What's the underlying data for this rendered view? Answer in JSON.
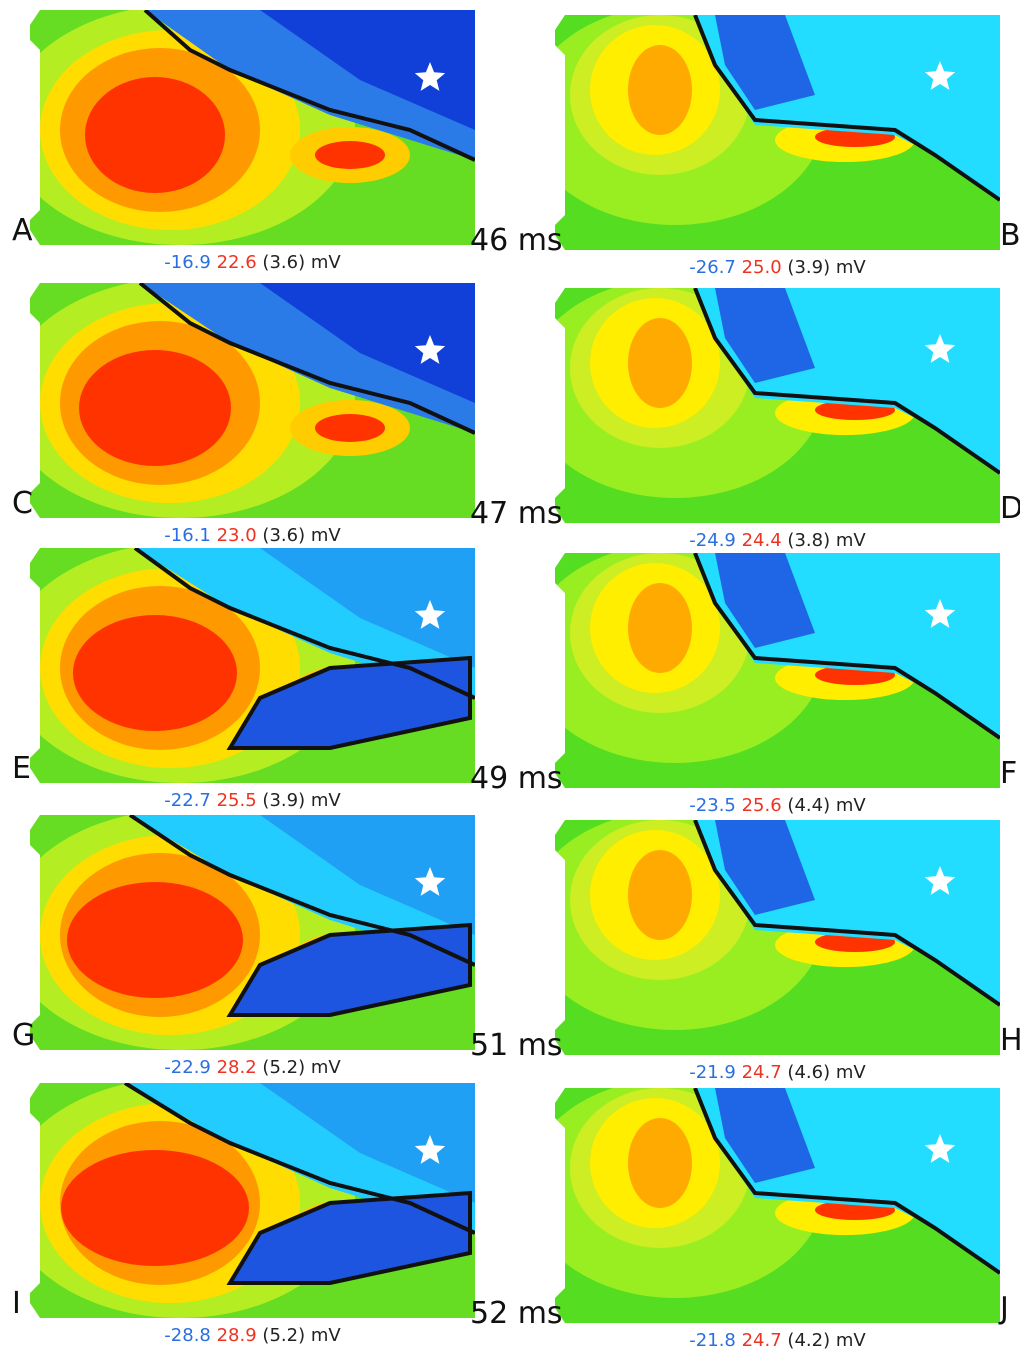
{
  "panels": [
    {
      "letter": "A",
      "min": "-16.9",
      "max": "22.6",
      "spread": "(3.6)",
      "unit": "mV"
    },
    {
      "letter": "B",
      "min": "-26.7",
      "max": "25.0",
      "spread": "(3.9)",
      "unit": "mV"
    },
    {
      "letter": "C",
      "min": "-16.1",
      "max": "23.0",
      "spread": "(3.6)",
      "unit": "mV"
    },
    {
      "letter": "D",
      "min": "-24.9",
      "max": "24.4",
      "spread": "(3.8)",
      "unit": "mV"
    },
    {
      "letter": "E",
      "min": "-22.7",
      "max": "25.5",
      "spread": "(3.9)",
      "unit": "mV"
    },
    {
      "letter": "F",
      "min": "-23.5",
      "max": "25.6",
      "spread": "(4.4)",
      "unit": "mV"
    },
    {
      "letter": "G",
      "min": "-22.9",
      "max": "28.2",
      "spread": "(5.2)",
      "unit": "mV"
    },
    {
      "letter": "H",
      "min": "-21.9",
      "max": "24.7",
      "spread": "(4.6)",
      "unit": "mV"
    },
    {
      "letter": "I",
      "min": "-28.8",
      "max": "28.9",
      "spread": "(5.2)",
      "unit": "mV"
    },
    {
      "letter": "J",
      "min": "-21.8",
      "max": "24.7",
      "spread": "(4.2)",
      "unit": "mV"
    }
  ],
  "times": [
    "46 ms",
    "47 ms",
    "49 ms",
    "51 ms",
    "52 ms"
  ]
}
